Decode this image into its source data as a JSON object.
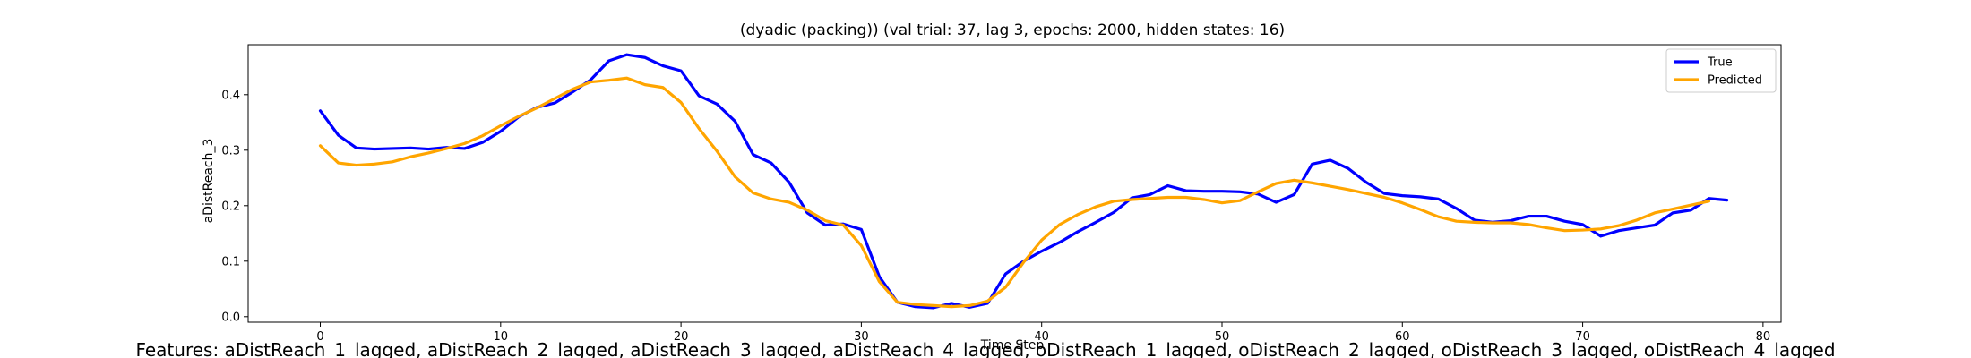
{
  "chart_data": {
    "type": "line",
    "title": "(dyadic (packing)) (val trial: 37, lag 3, epochs: 2000, hidden states: 16)",
    "xlabel": "Time Step",
    "ylabel": "aDistReach_3",
    "xlim": [
      -4,
      81
    ],
    "ylim": [
      -0.01,
      0.49
    ],
    "xticks": [
      0,
      10,
      20,
      30,
      40,
      50,
      60,
      70,
      80
    ],
    "yticks": [
      0.0,
      0.1,
      0.2,
      0.3,
      0.4
    ],
    "grid": false,
    "legend_position": "top-right",
    "series": [
      {
        "name": "True",
        "color": "#0000ff",
        "values": [
          0.371,
          0.327,
          0.304,
          0.302,
          0.303,
          0.304,
          0.302,
          0.305,
          0.303,
          0.314,
          0.334,
          0.36,
          0.377,
          0.385,
          0.405,
          0.427,
          0.461,
          0.472,
          0.467,
          0.452,
          0.443,
          0.398,
          0.383,
          0.352,
          0.292,
          0.277,
          0.242,
          0.187,
          0.165,
          0.167,
          0.157,
          0.072,
          0.026,
          0.018,
          0.016,
          0.024,
          0.017,
          0.024,
          0.077,
          0.1,
          0.118,
          0.134,
          0.153,
          0.17,
          0.188,
          0.214,
          0.22,
          0.236,
          0.227,
          0.226,
          0.226,
          0.225,
          0.221,
          0.206,
          0.22,
          0.275,
          0.282,
          0.267,
          0.242,
          0.222,
          0.218,
          0.216,
          0.212,
          0.195,
          0.174,
          0.17,
          0.173,
          0.181,
          0.181,
          0.172,
          0.166,
          0.145,
          0.155,
          0.16,
          0.165,
          0.187,
          0.192,
          0.213,
          0.21
        ]
      },
      {
        "name": "Predicted",
        "color": "#ffa500",
        "values": [
          0.308,
          0.277,
          0.273,
          0.275,
          0.279,
          0.288,
          0.295,
          0.303,
          0.312,
          0.326,
          0.344,
          0.361,
          0.376,
          0.393,
          0.41,
          0.423,
          0.426,
          0.43,
          0.418,
          0.413,
          0.386,
          0.339,
          0.298,
          0.252,
          0.223,
          0.212,
          0.206,
          0.192,
          0.173,
          0.165,
          0.128,
          0.063,
          0.026,
          0.022,
          0.02,
          0.018,
          0.02,
          0.028,
          0.053,
          0.098,
          0.138,
          0.166,
          0.184,
          0.198,
          0.208,
          0.211,
          0.213,
          0.215,
          0.215,
          0.211,
          0.205,
          0.209,
          0.225,
          0.24,
          0.246,
          0.241,
          0.235,
          0.229,
          0.222,
          0.215,
          0.205,
          0.193,
          0.18,
          0.172,
          0.17,
          0.169,
          0.169,
          0.166,
          0.16,
          0.155,
          0.156,
          0.158,
          0.164,
          0.174,
          0.187,
          0.194,
          0.201,
          0.208
        ]
      }
    ],
    "footer": "Features: aDistReach_1_lagged, aDistReach_2_lagged, aDistReach_3_lagged, aDistReach_4_lagged, oDistReach_1_lagged, oDistReach_2_lagged, oDistReach_3_lagged, oDistReach_4_lagged"
  }
}
